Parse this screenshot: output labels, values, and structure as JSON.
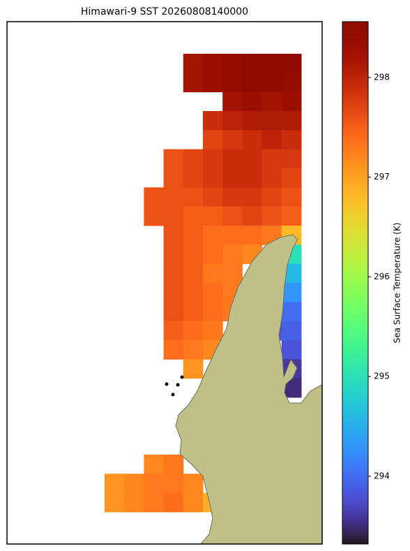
{
  "chart_data": {
    "type": "heatmap",
    "title": "Himawari-9 SST 20260808140000",
    "colorbar_label": "Sea Surface Temperature (K)",
    "colormap": "turbo",
    "clim": [
      293.32,
      298.56
    ],
    "cticks": [
      294,
      295,
      296,
      297,
      298
    ],
    "values": [
      [
        null,
        null,
        null,
        null,
        298.2,
        298.3,
        298.4,
        298.5,
        298.5,
        298.5
      ],
      [
        null,
        null,
        null,
        null,
        298.2,
        298.3,
        298.4,
        298.5,
        298.5,
        298.4
      ],
      [
        null,
        null,
        null,
        null,
        null,
        null,
        298.2,
        298.3,
        298.2,
        298.3
      ],
      [
        null,
        null,
        null,
        null,
        null,
        297.9,
        298.0,
        298.1,
        298.1,
        298.1
      ],
      [
        null,
        null,
        null,
        null,
        null,
        297.7,
        297.8,
        297.9,
        298.0,
        297.9
      ],
      [
        null,
        null,
        null,
        297.6,
        297.7,
        297.8,
        297.9,
        297.9,
        297.8,
        297.8
      ],
      [
        null,
        null,
        null,
        297.6,
        297.7,
        297.8,
        297.9,
        297.9,
        297.8,
        297.7
      ],
      [
        null,
        null,
        297.6,
        297.6,
        297.6,
        297.7,
        297.8,
        297.8,
        297.7,
        297.6
      ],
      [
        null,
        null,
        297.6,
        297.6,
        297.5,
        297.5,
        297.6,
        297.7,
        297.6,
        297.5
      ],
      [
        null,
        null,
        null,
        297.6,
        297.5,
        297.4,
        297.4,
        297.4,
        297.3,
        296.8
      ],
      [
        null,
        null,
        null,
        297.6,
        297.5,
        297.4,
        297.3,
        297.2,
        null,
        295.0
      ],
      [
        null,
        null,
        null,
        297.6,
        297.5,
        297.3,
        297.3,
        null,
        null,
        294.6
      ],
      [
        null,
        null,
        null,
        297.6,
        297.5,
        297.4,
        297.3,
        null,
        294.1,
        294.3
      ],
      [
        null,
        null,
        null,
        297.6,
        297.5,
        297.4,
        297.3,
        null,
        293.9,
        294.0
      ],
      [
        null,
        null,
        null,
        297.5,
        297.4,
        297.3,
        null,
        null,
        293.8,
        293.9
      ],
      [
        null,
        null,
        null,
        297.4,
        297.3,
        297.2,
        null,
        null,
        null,
        293.8
      ],
      [
        null,
        null,
        null,
        null,
        297.1,
        null,
        null,
        null,
        null,
        293.6
      ],
      [
        null,
        null,
        null,
        null,
        null,
        null,
        null,
        null,
        null,
        293.5
      ],
      [
        null,
        null,
        null,
        null,
        null,
        null,
        null,
        null,
        null,
        null
      ],
      [
        null,
        null,
        null,
        null,
        null,
        null,
        null,
        null,
        null,
        null
      ],
      [
        null,
        null,
        null,
        null,
        null,
        null,
        null,
        null,
        null,
        null
      ],
      [
        null,
        null,
        297.2,
        297.3,
        null,
        null,
        null,
        null,
        null,
        null
      ],
      [
        297.1,
        297.2,
        297.3,
        297.3,
        297.2,
        null,
        null,
        null,
        null,
        null
      ],
      [
        297.1,
        297.2,
        297.3,
        297.4,
        297.2,
        296.9,
        null,
        null,
        null,
        null
      ]
    ]
  }
}
